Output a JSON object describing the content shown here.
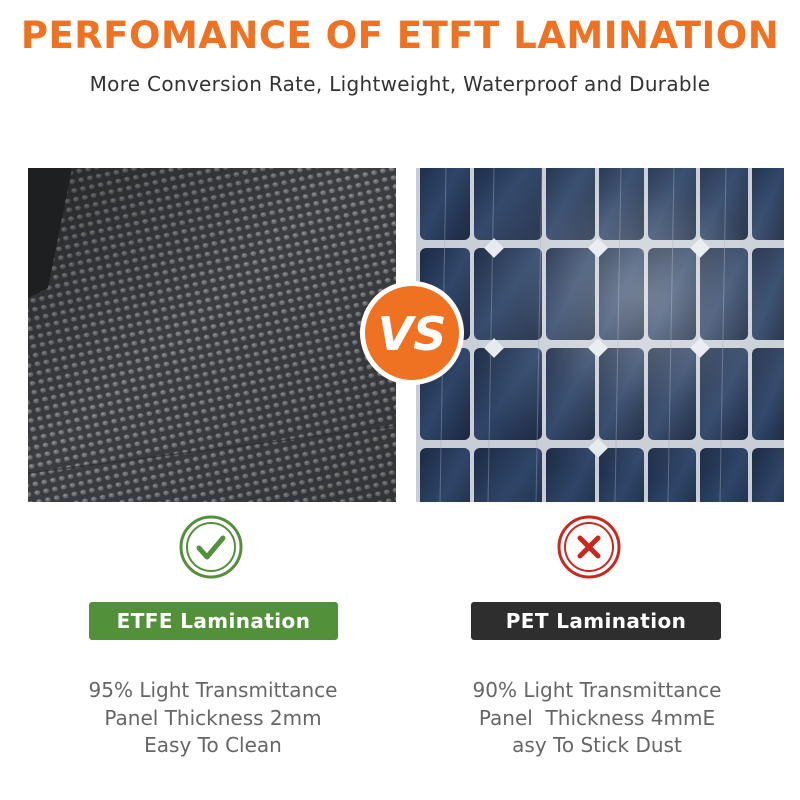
{
  "header": {
    "title": "PERFOMANCE OF ETFT LAMINATION",
    "subtitle": "More Conversion Rate, Lightweight, Waterproof and Durable"
  },
  "comparison": {
    "vs_text": "VS",
    "left": {
      "image": "etfe-textured-surface",
      "status_icon": "check-icon",
      "label": "ETFE Lamination",
      "specs": [
        "95% Light Transmittance",
        "Panel Thickness 2mm",
        "Easy To Clean"
      ]
    },
    "right": {
      "image": "pet-solar-panel-cells",
      "status_icon": "cross-icon",
      "label": "PET Lamination",
      "specs": [
        "90% Light Transmittance",
        "Panel  Thickness 4mmE",
        "asy To Stick Dust"
      ]
    }
  },
  "colors": {
    "accent_orange": "#ef7223",
    "good_green": "#52913a",
    "bad_red": "#c8281e",
    "dark_label": "#2e2e2e"
  }
}
